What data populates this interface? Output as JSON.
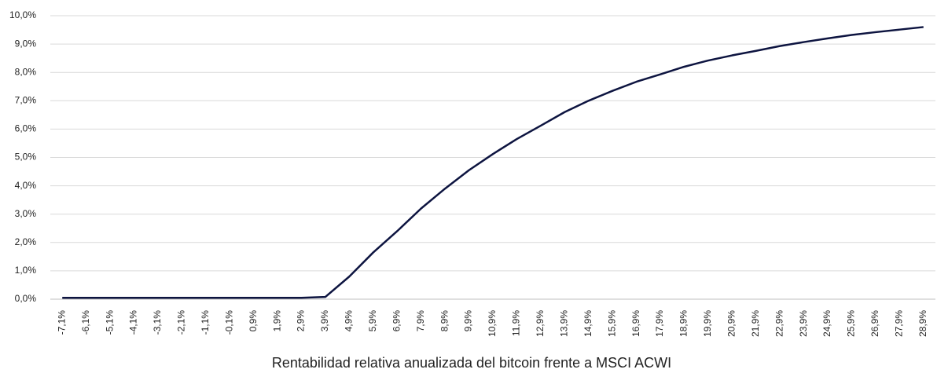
{
  "chart_data": {
    "type": "line",
    "x_label": "Rentabilidad relativa anualizada del bitcoin frente a MSCI ACWI",
    "categories": [
      "-7,1%",
      "-6,1%",
      "-5,1%",
      "-4,1%",
      "-3,1%",
      "-2,1%",
      "-1,1%",
      "-0,1%",
      "0,9%",
      "1,9%",
      "2,9%",
      "3,9%",
      "4,9%",
      "5,9%",
      "6,9%",
      "7,9%",
      "8,9%",
      "9,9%",
      "10,9%",
      "11,9%",
      "12,9%",
      "13,9%",
      "14,9%",
      "15,9%",
      "16,9%",
      "17,9%",
      "18,9%",
      "19,9%",
      "20,9%",
      "21,9%",
      "22,9%",
      "23,9%",
      "24,9%",
      "25,9%",
      "26,9%",
      "27,9%",
      "28,9%"
    ],
    "values": [
      0.05,
      0.05,
      0.05,
      0.05,
      0.05,
      0.05,
      0.05,
      0.05,
      0.05,
      0.05,
      0.05,
      0.08,
      0.8,
      1.65,
      2.4,
      3.2,
      3.9,
      4.55,
      5.12,
      5.65,
      6.12,
      6.6,
      7.0,
      7.35,
      7.67,
      7.93,
      8.2,
      8.42,
      8.6,
      8.76,
      8.93,
      9.07,
      9.2,
      9.32,
      9.42,
      9.51,
      9.6
    ],
    "color": "#0d1440",
    "ylim": [
      0,
      10
    ],
    "yticks": [
      {
        "value": 0,
        "label": "0,0%"
      },
      {
        "value": 1,
        "label": "1,0%"
      },
      {
        "value": 2,
        "label": "2,0%"
      },
      {
        "value": 3,
        "label": "3,0%"
      },
      {
        "value": 4,
        "label": "4,0%"
      },
      {
        "value": 5,
        "label": "5,0%"
      },
      {
        "value": 6,
        "label": "6,0%"
      },
      {
        "value": 7,
        "label": "7,0%"
      },
      {
        "value": 8,
        "label": "8,0%"
      },
      {
        "value": 9,
        "label": "9,0%"
      },
      {
        "value": 10,
        "label": "10,0%"
      }
    ],
    "grid": true
  }
}
